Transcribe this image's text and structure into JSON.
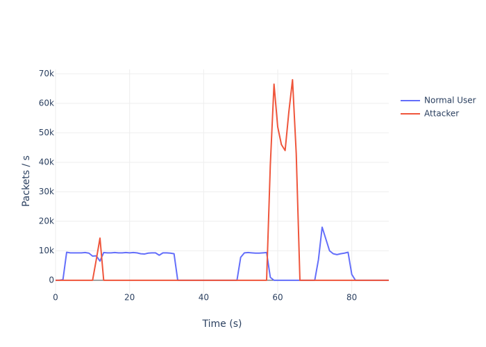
{
  "chart_data": {
    "type": "line",
    "x_label": "Time (s)",
    "y_label": "Packets / s",
    "x": [
      0,
      1,
      2,
      3,
      4,
      5,
      6,
      7,
      8,
      9,
      10,
      11,
      12,
      13,
      14,
      15,
      16,
      17,
      18,
      19,
      20,
      21,
      22,
      23,
      24,
      25,
      26,
      27,
      28,
      29,
      30,
      31,
      32,
      33,
      34,
      35,
      36,
      37,
      38,
      39,
      40,
      41,
      42,
      43,
      44,
      45,
      46,
      47,
      48,
      49,
      50,
      51,
      52,
      53,
      54,
      55,
      56,
      57,
      58,
      59,
      60,
      61,
      62,
      63,
      64,
      65,
      66,
      67,
      68,
      69,
      70,
      71,
      72,
      73,
      74,
      75,
      76,
      77,
      78,
      79,
      80,
      81,
      82,
      83,
      84,
      85,
      86,
      87,
      88,
      89,
      90
    ],
    "series": [
      {
        "name": "Normal User",
        "color": "#636efa",
        "values": [
          0,
          0,
          200,
          9500,
          9300,
          9300,
          9300,
          9300,
          9400,
          9200,
          8200,
          8300,
          6500,
          9400,
          9300,
          9300,
          9400,
          9300,
          9300,
          9400,
          9300,
          9400,
          9300,
          9000,
          8900,
          9200,
          9300,
          9300,
          8500,
          9300,
          9300,
          9200,
          9000,
          0,
          0,
          0,
          0,
          0,
          0,
          0,
          0,
          0,
          0,
          0,
          0,
          0,
          0,
          0,
          0,
          0,
          7800,
          9300,
          9400,
          9300,
          9200,
          9200,
          9300,
          9400,
          1000,
          0,
          0,
          0,
          0,
          0,
          0,
          0,
          0,
          0,
          0,
          0,
          0,
          7000,
          18000,
          14000,
          10000,
          9000,
          8700,
          9000,
          9200,
          9500,
          2000,
          0,
          0,
          0,
          0,
          0,
          0,
          0,
          0,
          0,
          0
        ]
      },
      {
        "name": "Attacker",
        "color": "#ef553b",
        "values": [
          0,
          0,
          0,
          0,
          0,
          0,
          0,
          0,
          0,
          0,
          0,
          7000,
          14300,
          0,
          0,
          0,
          0,
          0,
          0,
          0,
          0,
          0,
          0,
          0,
          0,
          0,
          0,
          0,
          0,
          0,
          0,
          0,
          0,
          0,
          0,
          0,
          0,
          0,
          0,
          0,
          0,
          0,
          0,
          0,
          0,
          0,
          0,
          0,
          0,
          0,
          0,
          0,
          0,
          0,
          0,
          0,
          0,
          0,
          39000,
          66500,
          52000,
          46000,
          44000,
          57000,
          68000,
          43000,
          0,
          0,
          0,
          0,
          0,
          0,
          0,
          0,
          0,
          0,
          0,
          0,
          0,
          0,
          0,
          0,
          0,
          0,
          0,
          0,
          0,
          0,
          0,
          0,
          0
        ]
      }
    ],
    "xlim": [
      0,
      90
    ],
    "ylim": [
      -4500,
      71500
    ],
    "xticks": [
      0,
      20,
      40,
      60,
      80
    ],
    "yticks": [
      0,
      {
        "value": 10000,
        "label": "10k"
      },
      {
        "value": 20000,
        "label": "20k"
      },
      {
        "value": 30000,
        "label": "30k"
      },
      {
        "value": 40000,
        "label": "40k"
      },
      {
        "value": 50000,
        "label": "50k"
      },
      {
        "value": 60000,
        "label": "60k"
      },
      {
        "value": 70000,
        "label": "70k"
      }
    ],
    "grid": true,
    "legend": "right"
  }
}
